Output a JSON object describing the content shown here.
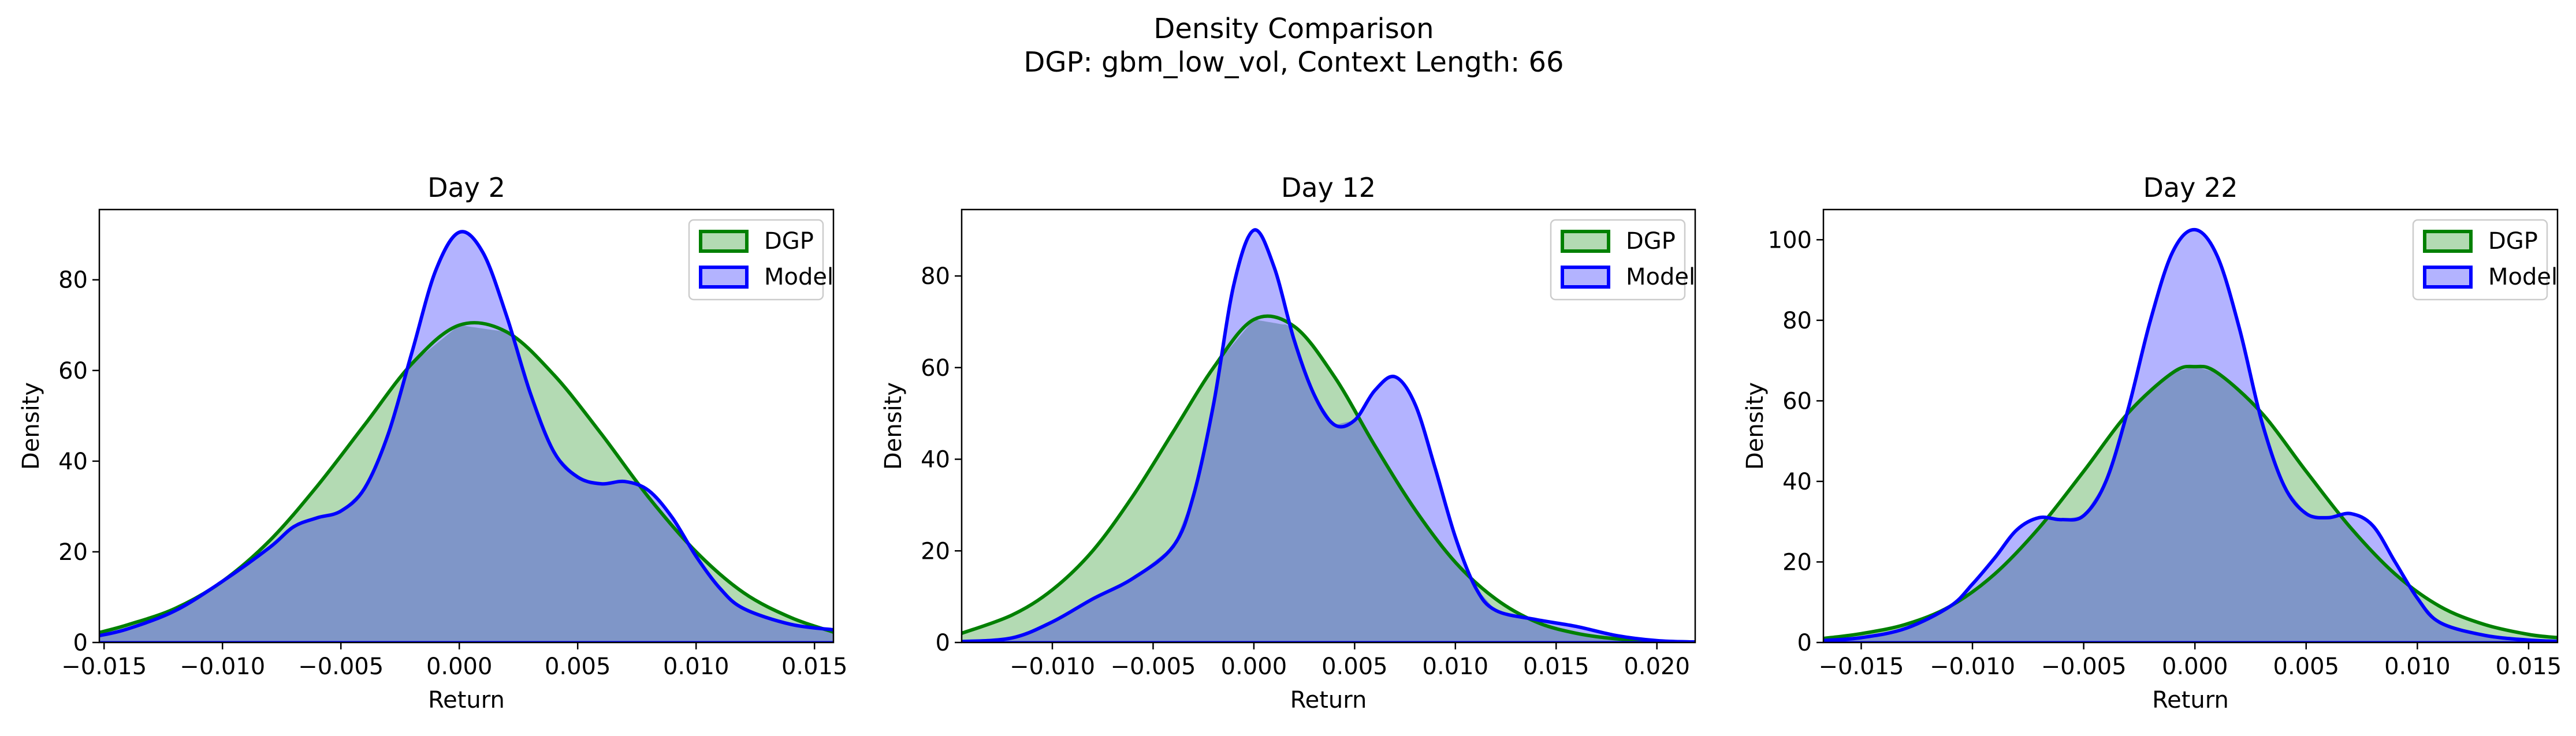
{
  "figure": {
    "title_line1": "Density Comparison",
    "title_line2": "DGP: gbm_low_vol, Context Length: 66"
  },
  "colors": {
    "dgp_line": "#008000",
    "dgp_fill": "#b3dab3",
    "model_line": "#0000ff",
    "model_fill": "#b3b3ff",
    "overlap_fill": "#7f96c8"
  },
  "chart_data": [
    {
      "type": "area",
      "title": "Day 2",
      "xlabel": "Return",
      "ylabel": "Density",
      "xlim": [
        -0.0152,
        0.0158
      ],
      "ylim": [
        0,
        95.5
      ],
      "xticks": [
        -0.015,
        -0.01,
        -0.005,
        0.0,
        0.005,
        0.01,
        0.015
      ],
      "xtick_labels": [
        "−0.015",
        "−0.010",
        "−0.005",
        "0.000",
        "0.005",
        "0.010",
        "0.015"
      ],
      "yticks": [
        0,
        20,
        40,
        60,
        80
      ],
      "ytick_labels": [
        "0",
        "20",
        "40",
        "60",
        "80"
      ],
      "legend": {
        "position": "upper right",
        "entries": [
          "DGP",
          "Model"
        ]
      },
      "series": [
        {
          "name": "DGP",
          "x": [
            -0.0152,
            -0.014,
            -0.012,
            -0.01,
            -0.008,
            -0.006,
            -0.004,
            -0.002,
            0.0,
            0.002,
            0.004,
            0.006,
            0.008,
            0.01,
            0.012,
            0.014,
            0.0158
          ],
          "y": [
            2.2,
            3.9,
            7.5,
            13.5,
            22.5,
            34.5,
            48.0,
            61.5,
            70.0,
            68.5,
            59.0,
            46.0,
            32.0,
            20.0,
            11.0,
            5.5,
            2.3
          ]
        },
        {
          "name": "Model",
          "x": [
            -0.0152,
            -0.014,
            -0.012,
            -0.01,
            -0.008,
            -0.007,
            -0.006,
            -0.005,
            -0.004,
            -0.003,
            -0.002,
            -0.001,
            0.0,
            0.001,
            0.002,
            0.003,
            0.004,
            0.005,
            0.006,
            0.007,
            0.008,
            0.009,
            0.01,
            0.011,
            0.012,
            0.014,
            0.0158
          ],
          "y": [
            1.5,
            3.0,
            7.0,
            13.5,
            21.0,
            25.5,
            27.5,
            29.0,
            34.0,
            46.0,
            64.0,
            82.0,
            90.5,
            86.0,
            72.0,
            55.0,
            42.0,
            36.5,
            35.0,
            35.5,
            33.5,
            27.5,
            19.0,
            12.0,
            7.5,
            4.0,
            2.8
          ]
        }
      ]
    },
    {
      "type": "area",
      "title": "Day 12",
      "xlabel": "Return",
      "ylabel": "Density",
      "xlim": [
        -0.0145,
        0.0219
      ],
      "ylim": [
        0,
        94.5
      ],
      "xticks": [
        -0.01,
        -0.005,
        0.0,
        0.005,
        0.01,
        0.015,
        0.02
      ],
      "xtick_labels": [
        "−0.010",
        "−0.005",
        "0.000",
        "0.005",
        "0.010",
        "0.015",
        "0.020"
      ],
      "yticks": [
        0,
        20,
        40,
        60,
        80
      ],
      "ytick_labels": [
        "0",
        "20",
        "40",
        "60",
        "80"
      ],
      "legend": {
        "position": "upper right",
        "entries": [
          "DGP",
          "Model"
        ]
      },
      "series": [
        {
          "name": "DGP",
          "x": [
            -0.0145,
            -0.012,
            -0.01,
            -0.008,
            -0.006,
            -0.004,
            -0.002,
            0.0,
            0.002,
            0.004,
            0.006,
            0.008,
            0.01,
            0.012,
            0.014,
            0.016,
            0.018,
            0.02,
            0.0219
          ],
          "y": [
            2.0,
            6.0,
            11.5,
            20.0,
            32.0,
            46.0,
            60.0,
            70.5,
            69.0,
            58.0,
            43.0,
            29.0,
            17.5,
            9.5,
            4.5,
            2.0,
            0.8,
            0.3,
            0.1
          ]
        },
        {
          "name": "Model",
          "x": [
            -0.0145,
            -0.012,
            -0.01,
            -0.008,
            -0.006,
            -0.004,
            -0.003,
            -0.002,
            -0.001,
            0.0,
            0.001,
            0.002,
            0.003,
            0.004,
            0.005,
            0.006,
            0.007,
            0.008,
            0.009,
            0.01,
            0.011,
            0.012,
            0.014,
            0.016,
            0.018,
            0.02,
            0.0219
          ],
          "y": [
            0.2,
            1.0,
            4.5,
            9.5,
            14.0,
            21.0,
            32.0,
            52.0,
            78.0,
            90.0,
            82.0,
            66.0,
            54.0,
            47.5,
            48.5,
            55.0,
            58.0,
            52.0,
            38.0,
            23.0,
            12.0,
            7.0,
            5.0,
            3.5,
            1.5,
            0.4,
            0.1
          ]
        }
      ]
    },
    {
      "type": "area",
      "title": "Day 22",
      "xlabel": "Return",
      "ylabel": "Density",
      "xlim": [
        -0.0167,
        0.0163
      ],
      "ylim": [
        0,
        107.5
      ],
      "xticks": [
        -0.015,
        -0.01,
        -0.005,
        0.0,
        0.005,
        0.01,
        0.015
      ],
      "xtick_labels": [
        "−0.015",
        "−0.010",
        "−0.005",
        "0.000",
        "0.005",
        "0.010",
        "0.015"
      ],
      "yticks": [
        0,
        20,
        40,
        60,
        80,
        100
      ],
      "ytick_labels": [
        "0",
        "20",
        "40",
        "60",
        "80",
        "100"
      ],
      "legend": {
        "position": "upper right",
        "entries": [
          "DGP",
          "Model"
        ]
      },
      "series": [
        {
          "name": "DGP",
          "x": [
            -0.0167,
            -0.015,
            -0.013,
            -0.011,
            -0.009,
            -0.007,
            -0.005,
            -0.003,
            -0.001,
            0.0,
            0.001,
            0.003,
            0.005,
            0.007,
            0.009,
            0.011,
            0.013,
            0.015,
            0.0163
          ],
          "y": [
            1.0,
            2.2,
            4.5,
            9.0,
            17.0,
            28.5,
            42.5,
            57.0,
            67.0,
            68.5,
            67.0,
            57.0,
            42.5,
            28.5,
            17.0,
            9.0,
            4.5,
            2.0,
            1.2
          ]
        },
        {
          "name": "Model",
          "x": [
            -0.0167,
            -0.015,
            -0.013,
            -0.011,
            -0.01,
            -0.009,
            -0.008,
            -0.007,
            -0.006,
            -0.005,
            -0.004,
            -0.003,
            -0.002,
            -0.001,
            0.0,
            0.001,
            0.002,
            0.003,
            0.004,
            0.005,
            0.006,
            0.007,
            0.008,
            0.009,
            0.01,
            0.011,
            0.013,
            0.015,
            0.0163
          ],
          "y": [
            0.5,
            1.2,
            3.5,
            9.0,
            14.5,
            21.0,
            28.0,
            31.0,
            30.5,
            31.5,
            40.0,
            58.0,
            80.0,
            97.0,
            102.5,
            96.0,
            78.0,
            55.0,
            39.0,
            32.0,
            31.0,
            32.0,
            29.0,
            20.0,
            11.0,
            5.0,
            1.8,
            0.6,
            0.3
          ]
        }
      ]
    }
  ]
}
